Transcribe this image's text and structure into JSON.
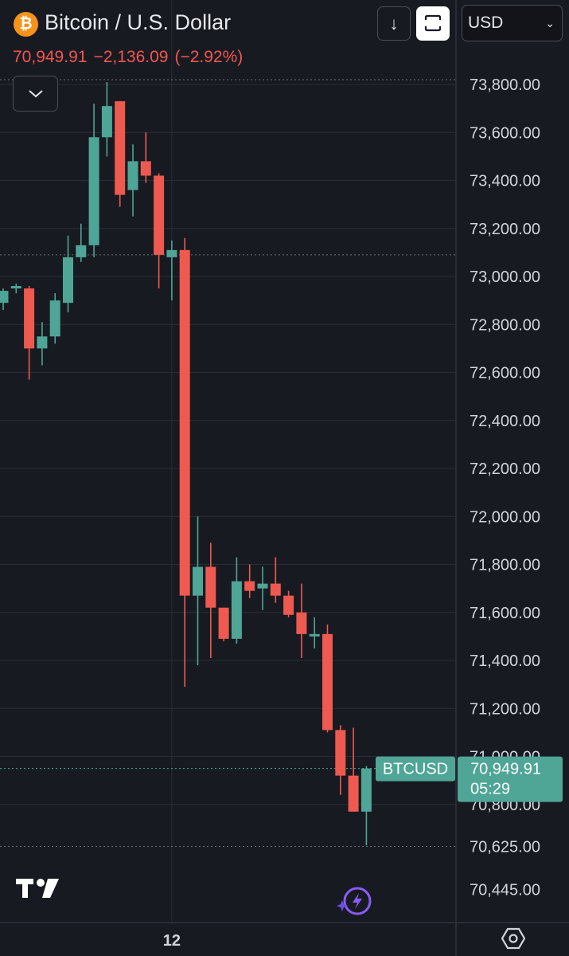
{
  "header": {
    "coin_symbol": "₿",
    "title": "Bitcoin / U.S. Dollar",
    "last_price": "70,949.91",
    "change": "−2,136.09",
    "change_pct": "(−2.92%)"
  },
  "toolbar": {
    "download_icon": "arrow-down-icon",
    "fullscreen_icon": "fullscreen-icon",
    "currency": "USD",
    "collapse_icon": "chevron-down-icon"
  },
  "colors": {
    "background": "#181a22",
    "up": "#4fa596",
    "down": "#ee5a4f",
    "grid": "#2a2d38",
    "price_label": "#4fa596"
  },
  "price_tag": {
    "symbol": "BTCUSD",
    "price": "70,949.91",
    "countdown": "05:29"
  },
  "footer": {
    "bottom_icons": [
      "tradingview-logo",
      "bolt-icon",
      "settings-hexagon-icon"
    ]
  },
  "chart_data": {
    "type": "candlestick",
    "y_ticks": [
      73800,
      73600,
      73400,
      73200,
      73000,
      72800,
      72600,
      72400,
      72200,
      72000,
      71800,
      71600,
      71400,
      71200,
      71000,
      70800
    ],
    "y_tick_labels": [
      "73,800.00",
      "73,600.00",
      "73,400.00",
      "73,200.00",
      "73,000.00",
      "72,800.00",
      "72,600.00",
      "72,400.00",
      "72,200.00",
      "72,000.00",
      "71,800.00",
      "71,600.00",
      "71,400.00",
      "71,200.00",
      "71,000.00",
      "70,800.00"
    ],
    "extra_axis_labels": [
      {
        "value": 70625,
        "label": "70,625.00"
      },
      {
        "value": 70445,
        "label": "70,445.00"
      }
    ],
    "ylim": [
      70400,
      73820
    ],
    "x_tick_labels": [
      {
        "index": 13,
        "label": "12"
      }
    ],
    "dotted_levels": [
      73820,
      73090,
      70625
    ],
    "current_price": 70949.91,
    "candles": [
      {
        "o": 72890,
        "h": 72950,
        "l": 72860,
        "c": 72940
      },
      {
        "o": 72950,
        "h": 72970,
        "l": 72930,
        "c": 72960
      },
      {
        "o": 72950,
        "h": 72960,
        "l": 72570,
        "c": 72700
      },
      {
        "o": 72700,
        "h": 72810,
        "l": 72630,
        "c": 72750
      },
      {
        "o": 72750,
        "h": 72930,
        "l": 72720,
        "c": 72900
      },
      {
        "o": 72890,
        "h": 73170,
        "l": 72850,
        "c": 73080
      },
      {
        "o": 73080,
        "h": 73220,
        "l": 73060,
        "c": 73130
      },
      {
        "o": 73130,
        "h": 73720,
        "l": 73080,
        "c": 73580
      },
      {
        "o": 73580,
        "h": 73810,
        "l": 73500,
        "c": 73710
      },
      {
        "o": 73730,
        "h": 73730,
        "l": 73290,
        "c": 73340
      },
      {
        "o": 73360,
        "h": 73550,
        "l": 73250,
        "c": 73480
      },
      {
        "o": 73480,
        "h": 73600,
        "l": 73390,
        "c": 73420
      },
      {
        "o": 73420,
        "h": 73430,
        "l": 72950,
        "c": 73090
      },
      {
        "o": 73080,
        "h": 73150,
        "l": 72900,
        "c": 73110
      },
      {
        "o": 73110,
        "h": 73160,
        "l": 71290,
        "c": 71670
      },
      {
        "o": 71670,
        "h": 72000,
        "l": 71380,
        "c": 71790
      },
      {
        "o": 71790,
        "h": 71890,
        "l": 71410,
        "c": 71620
      },
      {
        "o": 71620,
        "h": 71590,
        "l": 71480,
        "c": 71490
      },
      {
        "o": 71490,
        "h": 71830,
        "l": 71470,
        "c": 71730
      },
      {
        "o": 71730,
        "h": 71800,
        "l": 71660,
        "c": 71690
      },
      {
        "o": 71700,
        "h": 71790,
        "l": 71610,
        "c": 71720
      },
      {
        "o": 71720,
        "h": 71830,
        "l": 71640,
        "c": 71670
      },
      {
        "o": 71670,
        "h": 71690,
        "l": 71580,
        "c": 71590
      },
      {
        "o": 71600,
        "h": 71720,
        "l": 71410,
        "c": 71510
      },
      {
        "o": 71500,
        "h": 71580,
        "l": 71450,
        "c": 71510
      },
      {
        "o": 71510,
        "h": 71550,
        "l": 71100,
        "c": 71110
      },
      {
        "o": 71110,
        "h": 71130,
        "l": 70840,
        "c": 70920
      },
      {
        "o": 70920,
        "h": 71120,
        "l": 70770,
        "c": 70770
      },
      {
        "o": 70770,
        "h": 70960,
        "l": 70630,
        "c": 70950
      }
    ]
  }
}
